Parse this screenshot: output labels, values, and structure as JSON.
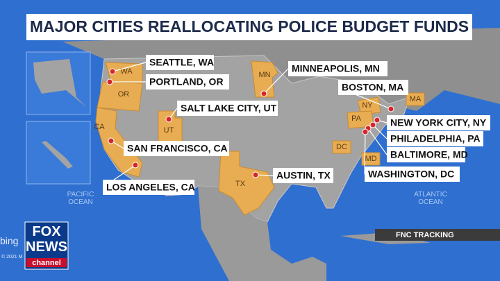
{
  "title": "MAJOR CITIES REALLOCATING POLICE BUDGET FUNDS",
  "cities": [
    "SEATTLE, WA",
    "PORTLAND, OR",
    "MINNEAPOLIS, MN",
    "BOSTON, MA",
    "SALT LAKE CITY, UT",
    "NEW YORK CITY, NY",
    "PHILADELPHIA, PA",
    "SAN FRANCISCO, CA",
    "BALTIMORE, MD",
    "AUSTIN, TX",
    "WASHINGTON, DC",
    "LOS ANGELES, CA"
  ],
  "states": [
    "WA",
    "OR",
    "CA",
    "UT",
    "MN",
    "TX",
    "NY",
    "PA",
    "MA",
    "DC",
    "MD"
  ],
  "oceans": [
    [
      "PACIFIC",
      "OCEAN"
    ],
    [
      "ATLANTIC",
      "OCEAN"
    ]
  ],
  "source": "FNC TRACKING",
  "logo": {
    "line1": "FOX",
    "line2": "NEWS",
    "line3": "channel"
  },
  "watermark": "bing",
  "copyright": "© 2021 M"
}
